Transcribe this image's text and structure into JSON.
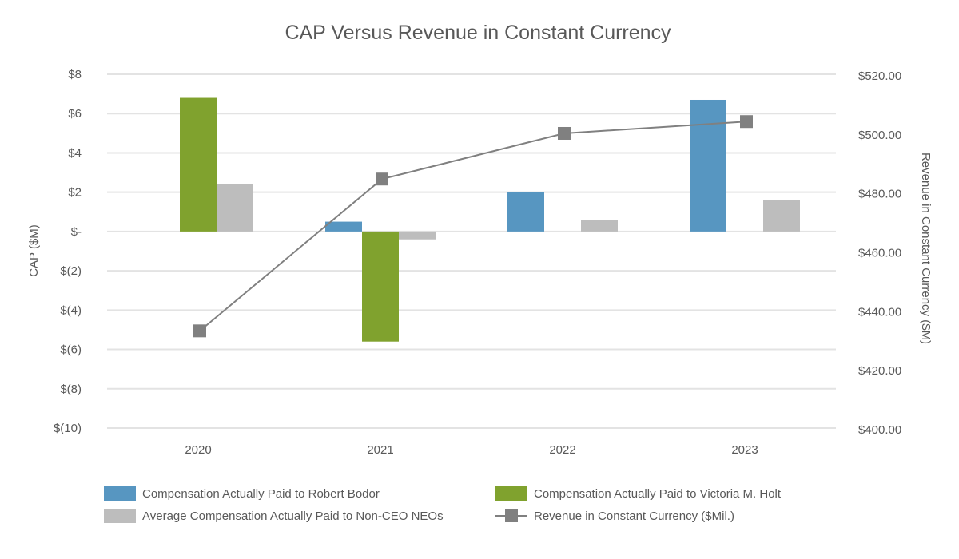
{
  "chart_data": {
    "type": "bar",
    "title": "CAP Versus Revenue in Constant Currency",
    "categories": [
      "2020",
      "2021",
      "2022",
      "2023"
    ],
    "ylabel": "CAP ($M)",
    "y2label": "Revenue in Constant Currency ($M)",
    "ylim": [
      -10,
      8
    ],
    "y2lim": [
      400,
      520
    ],
    "y_ticks": [
      "$8",
      "$6",
      "$4",
      "$2",
      "$-",
      "$(2)",
      "$(4)",
      "$(6)",
      "$(8)",
      "$(10)"
    ],
    "y_tick_values": [
      8,
      6,
      4,
      2,
      0,
      -2,
      -4,
      -6,
      -8,
      -10
    ],
    "y2_ticks": [
      "$520.00",
      "$500.00",
      "$480.00",
      "$460.00",
      "$440.00",
      "$420.00",
      "$400.00"
    ],
    "y2_tick_values": [
      520,
      500,
      480,
      460,
      440,
      420,
      400
    ],
    "grid": true,
    "legend_position": "bottom",
    "series": [
      {
        "name": "Compensation Actually Paid to Robert Bodor",
        "type": "bar",
        "axis": "left",
        "color": "#5796c1",
        "values": [
          null,
          0.5,
          2.0,
          6.7
        ]
      },
      {
        "name": "Compensation Actually Paid to Victoria M. Holt",
        "type": "bar",
        "axis": "left",
        "color": "#80a22e",
        "values": [
          6.8,
          -5.6,
          null,
          null
        ]
      },
      {
        "name": "Average Compensation Actually Paid to Non-CEO NEOs",
        "type": "bar",
        "axis": "left",
        "color": "#bdbdbd",
        "values": [
          2.4,
          -0.4,
          0.6,
          1.6
        ]
      },
      {
        "name": "Revenue in Constant Currency ($Mil.)",
        "type": "line",
        "axis": "right",
        "color": "#808080",
        "values": [
          433.5,
          485.0,
          500.5,
          504.5
        ]
      }
    ]
  }
}
